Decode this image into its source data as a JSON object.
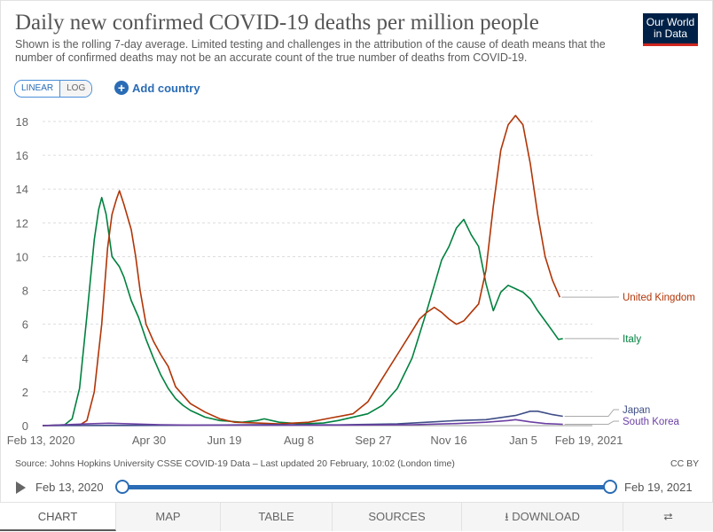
{
  "header": {
    "title": "Daily new confirmed COVID-19 deaths per million people",
    "subtitle": "Shown is the rolling 7-day average. Limited testing and challenges in the attribution of the cause of death means that the number of confirmed deaths may not be an accurate count of the true number of deaths from COVID-19.",
    "logo": [
      "Our World",
      "in Data"
    ]
  },
  "controls": {
    "linear": "LINEAR",
    "log": "LOG",
    "add_country": "Add country"
  },
  "footer": {
    "source": "Source: Johns Hopkins University CSSE COVID-19 Data – Last updated 20 February, 10:02 (London time)",
    "license": "CC BY"
  },
  "timeline": {
    "start": "Feb 13, 2020",
    "end": "Feb 19, 2021"
  },
  "tabs": [
    "CHART",
    "MAP",
    "TABLE",
    "SOURCES",
    "DOWNLOAD"
  ],
  "colors": {
    "United Kingdom": "#b13507",
    "Italy": "#00813f",
    "Japan": "#3f4e87",
    "South Korea": "#6b3fa3",
    "accent": "#2a6cb5"
  },
  "chart_data": {
    "type": "line",
    "title": "Daily new confirmed COVID-19 deaths per million people",
    "ylabel": "",
    "xlabel": "",
    "ylim": [
      0,
      18
    ],
    "y_ticks": [
      0,
      2,
      4,
      6,
      8,
      10,
      12,
      14,
      16,
      18
    ],
    "x_ticks": [
      "Feb 13, 2020",
      "Apr 30",
      "Jun 19",
      "Aug 8",
      "Sep 27",
      "Nov 16",
      "Jan 5",
      "Feb 19, 2021"
    ],
    "grid": true,
    "series": [
      {
        "name": "Italy",
        "values": [
          [
            0,
            0
          ],
          [
            15,
            0.05
          ],
          [
            20,
            0.4
          ],
          [
            25,
            2.2
          ],
          [
            30,
            6.5
          ],
          [
            35,
            11
          ],
          [
            38,
            12.8
          ],
          [
            40,
            13.5
          ],
          [
            43,
            12.5
          ],
          [
            47,
            10
          ],
          [
            52,
            9.4
          ],
          [
            55,
            8.8
          ],
          [
            60,
            7.4
          ],
          [
            65,
            6.4
          ],
          [
            70,
            5.1
          ],
          [
            75,
            4
          ],
          [
            80,
            3
          ],
          [
            85,
            2.2
          ],
          [
            90,
            1.6
          ],
          [
            95,
            1.2
          ],
          [
            100,
            0.9
          ],
          [
            110,
            0.5
          ],
          [
            120,
            0.3
          ],
          [
            135,
            0.2
          ],
          [
            145,
            0.3
          ],
          [
            150,
            0.4
          ],
          [
            160,
            0.2
          ],
          [
            175,
            0.1
          ],
          [
            190,
            0.15
          ],
          [
            200,
            0.3
          ],
          [
            220,
            0.7
          ],
          [
            230,
            1.2
          ],
          [
            240,
            2.2
          ],
          [
            250,
            4
          ],
          [
            260,
            6.8
          ],
          [
            265,
            8.3
          ],
          [
            270,
            9.8
          ],
          [
            275,
            10.6
          ],
          [
            280,
            11.7
          ],
          [
            285,
            12.2
          ],
          [
            290,
            11.3
          ],
          [
            295,
            10.6
          ],
          [
            300,
            8.4
          ],
          [
            305,
            6.8
          ],
          [
            310,
            7.9
          ],
          [
            315,
            8.3
          ],
          [
            320,
            8.1
          ],
          [
            325,
            7.9
          ],
          [
            330,
            7.5
          ],
          [
            335,
            6.8
          ],
          [
            340,
            6.2
          ],
          [
            345,
            5.6
          ],
          [
            349,
            5.1
          ],
          [
            352,
            5.15
          ]
        ]
      },
      {
        "name": "United Kingdom",
        "values": [
          [
            0,
            0
          ],
          [
            25,
            0.03
          ],
          [
            30,
            0.3
          ],
          [
            35,
            2
          ],
          [
            40,
            6
          ],
          [
            44,
            10.5
          ],
          [
            47,
            12.5
          ],
          [
            50,
            13.4
          ],
          [
            52,
            13.9
          ],
          [
            55,
            13.1
          ],
          [
            60,
            11.6
          ],
          [
            63,
            10
          ],
          [
            66,
            8
          ],
          [
            70,
            6
          ],
          [
            75,
            5
          ],
          [
            80,
            4.2
          ],
          [
            85,
            3.5
          ],
          [
            90,
            2.3
          ],
          [
            95,
            1.8
          ],
          [
            100,
            1.3
          ],
          [
            110,
            0.8
          ],
          [
            120,
            0.4
          ],
          [
            130,
            0.2
          ],
          [
            145,
            0.15
          ],
          [
            160,
            0.1
          ],
          [
            180,
            0.2
          ],
          [
            195,
            0.45
          ],
          [
            210,
            0.7
          ],
          [
            220,
            1.4
          ],
          [
            230,
            2.8
          ],
          [
            240,
            4.2
          ],
          [
            250,
            5.6
          ],
          [
            255,
            6.3
          ],
          [
            260,
            6.7
          ],
          [
            265,
            7
          ],
          [
            270,
            6.7
          ],
          [
            275,
            6.3
          ],
          [
            280,
            6
          ],
          [
            285,
            6.2
          ],
          [
            290,
            6.7
          ],
          [
            295,
            7.2
          ],
          [
            300,
            9.2
          ],
          [
            305,
            13
          ],
          [
            310,
            16.3
          ],
          [
            315,
            17.8
          ],
          [
            320,
            18.35
          ],
          [
            325,
            17.8
          ],
          [
            330,
            15.5
          ],
          [
            335,
            12.5
          ],
          [
            340,
            10
          ],
          [
            345,
            8.6
          ],
          [
            350,
            7.6
          ]
        ]
      },
      {
        "name": "Japan",
        "values": [
          [
            0,
            0
          ],
          [
            60,
            0.01
          ],
          [
            100,
            0.02
          ],
          [
            150,
            0.06
          ],
          [
            200,
            0.04
          ],
          [
            240,
            0.1
          ],
          [
            260,
            0.2
          ],
          [
            280,
            0.3
          ],
          [
            300,
            0.35
          ],
          [
            320,
            0.6
          ],
          [
            330,
            0.85
          ],
          [
            335,
            0.85
          ],
          [
            340,
            0.75
          ],
          [
            345,
            0.65
          ],
          [
            352,
            0.55
          ]
        ]
      },
      {
        "name": "South Korea",
        "values": [
          [
            0,
            0
          ],
          [
            30,
            0.1
          ],
          [
            45,
            0.14
          ],
          [
            60,
            0.1
          ],
          [
            80,
            0.05
          ],
          [
            100,
            0.03
          ],
          [
            150,
            0.02
          ],
          [
            200,
            0.03
          ],
          [
            250,
            0.05
          ],
          [
            280,
            0.12
          ],
          [
            300,
            0.2
          ],
          [
            315,
            0.3
          ],
          [
            320,
            0.35
          ],
          [
            330,
            0.22
          ],
          [
            340,
            0.12
          ],
          [
            352,
            0.08
          ]
        ]
      }
    ]
  }
}
